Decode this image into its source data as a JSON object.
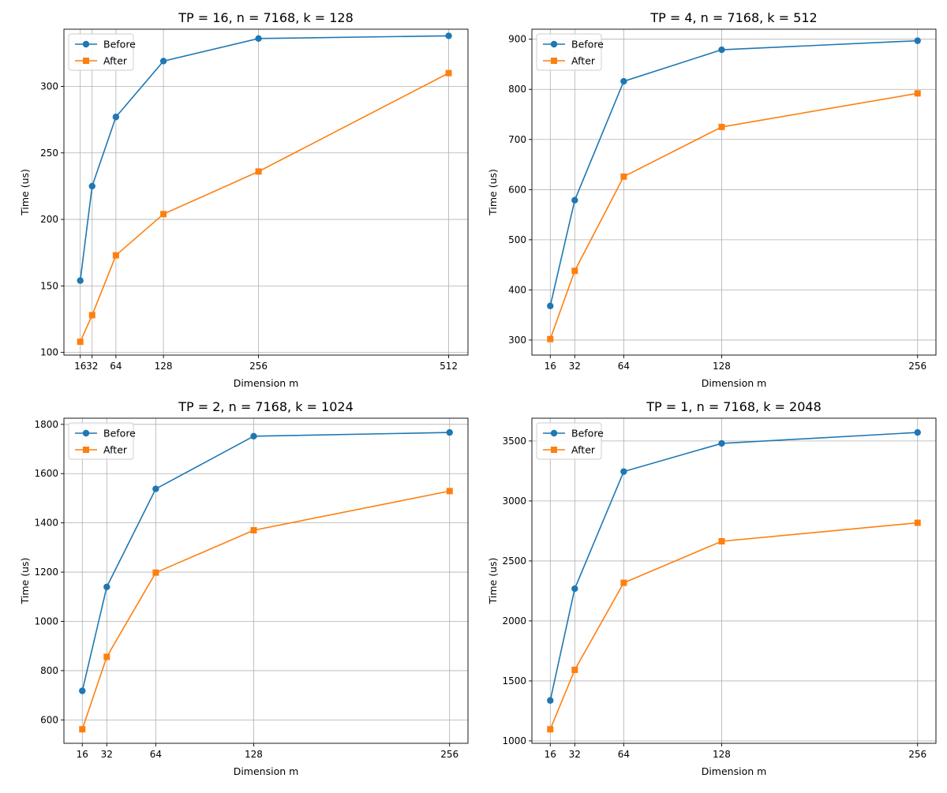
{
  "chart_data": [
    {
      "type": "line",
      "title": "TP = 16, n = 7168, k = 128",
      "xlabel": "Dimension m",
      "ylabel": "Time (us)",
      "x": [
        16,
        32,
        64,
        128,
        256,
        512
      ],
      "xticks": [
        16,
        32,
        64,
        128,
        256,
        512
      ],
      "xlim": [
        -6,
        538
      ],
      "ylim": [
        98,
        343
      ],
      "yticks": [
        100,
        150,
        200,
        250,
        300
      ],
      "grid": true,
      "legend": "upper-left",
      "series": [
        {
          "name": "Before",
          "values": [
            154,
            225,
            277,
            319,
            336,
            338
          ],
          "color": "#1f77b4",
          "marker": "circle"
        },
        {
          "name": "After",
          "values": [
            108,
            128,
            173,
            204,
            236,
            310
          ],
          "color": "#ff7f0e",
          "marker": "square"
        }
      ]
    },
    {
      "type": "line",
      "title": "TP = 4, n = 7168, k = 512",
      "xlabel": "Dimension m",
      "ylabel": "Time (us)",
      "x": [
        16,
        32,
        64,
        128,
        256
      ],
      "xticks": [
        16,
        32,
        64,
        128,
        256
      ],
      "xlim": [
        4,
        268
      ],
      "ylim": [
        270,
        920
      ],
      "yticks": [
        300,
        400,
        500,
        600,
        700,
        800,
        900
      ],
      "grid": true,
      "legend": "upper-left",
      "series": [
        {
          "name": "Before",
          "values": [
            368,
            579,
            816,
            879,
            897
          ],
          "color": "#1f77b4",
          "marker": "circle"
        },
        {
          "name": "After",
          "values": [
            302,
            438,
            626,
            725,
            792
          ],
          "color": "#ff7f0e",
          "marker": "square"
        }
      ]
    },
    {
      "type": "line",
      "title": "TP = 2, n = 7168, k = 1024",
      "xlabel": "Dimension m",
      "ylabel": "Time (us)",
      "x": [
        16,
        32,
        64,
        128,
        256
      ],
      "xticks": [
        16,
        32,
        64,
        128,
        256
      ],
      "xlim": [
        4,
        268
      ],
      "ylim": [
        505,
        1825
      ],
      "yticks": [
        600,
        800,
        1000,
        1200,
        1400,
        1600,
        1800
      ],
      "grid": true,
      "legend": "upper-left",
      "series": [
        {
          "name": "Before",
          "values": [
            718,
            1140,
            1538,
            1752,
            1767
          ],
          "color": "#1f77b4",
          "marker": "circle"
        },
        {
          "name": "After",
          "values": [
            562,
            856,
            1198,
            1370,
            1529
          ],
          "color": "#ff7f0e",
          "marker": "square"
        }
      ]
    },
    {
      "type": "line",
      "title": "TP = 1, n = 7168, k = 2048",
      "xlabel": "Dimension m",
      "ylabel": "Time (us)",
      "x": [
        16,
        32,
        64,
        128,
        256
      ],
      "xticks": [
        16,
        32,
        64,
        128,
        256
      ],
      "xlim": [
        4,
        268
      ],
      "ylim": [
        980,
        3690
      ],
      "yticks": [
        1000,
        1500,
        2000,
        2500,
        3000,
        3500
      ],
      "grid": true,
      "legend": "upper-left",
      "series": [
        {
          "name": "Before",
          "values": [
            1337,
            2269,
            3245,
            3480,
            3571
          ],
          "color": "#1f77b4",
          "marker": "circle"
        },
        {
          "name": "After",
          "values": [
            1097,
            1592,
            2318,
            2664,
            2818
          ],
          "color": "#ff7f0e",
          "marker": "square"
        }
      ]
    }
  ]
}
